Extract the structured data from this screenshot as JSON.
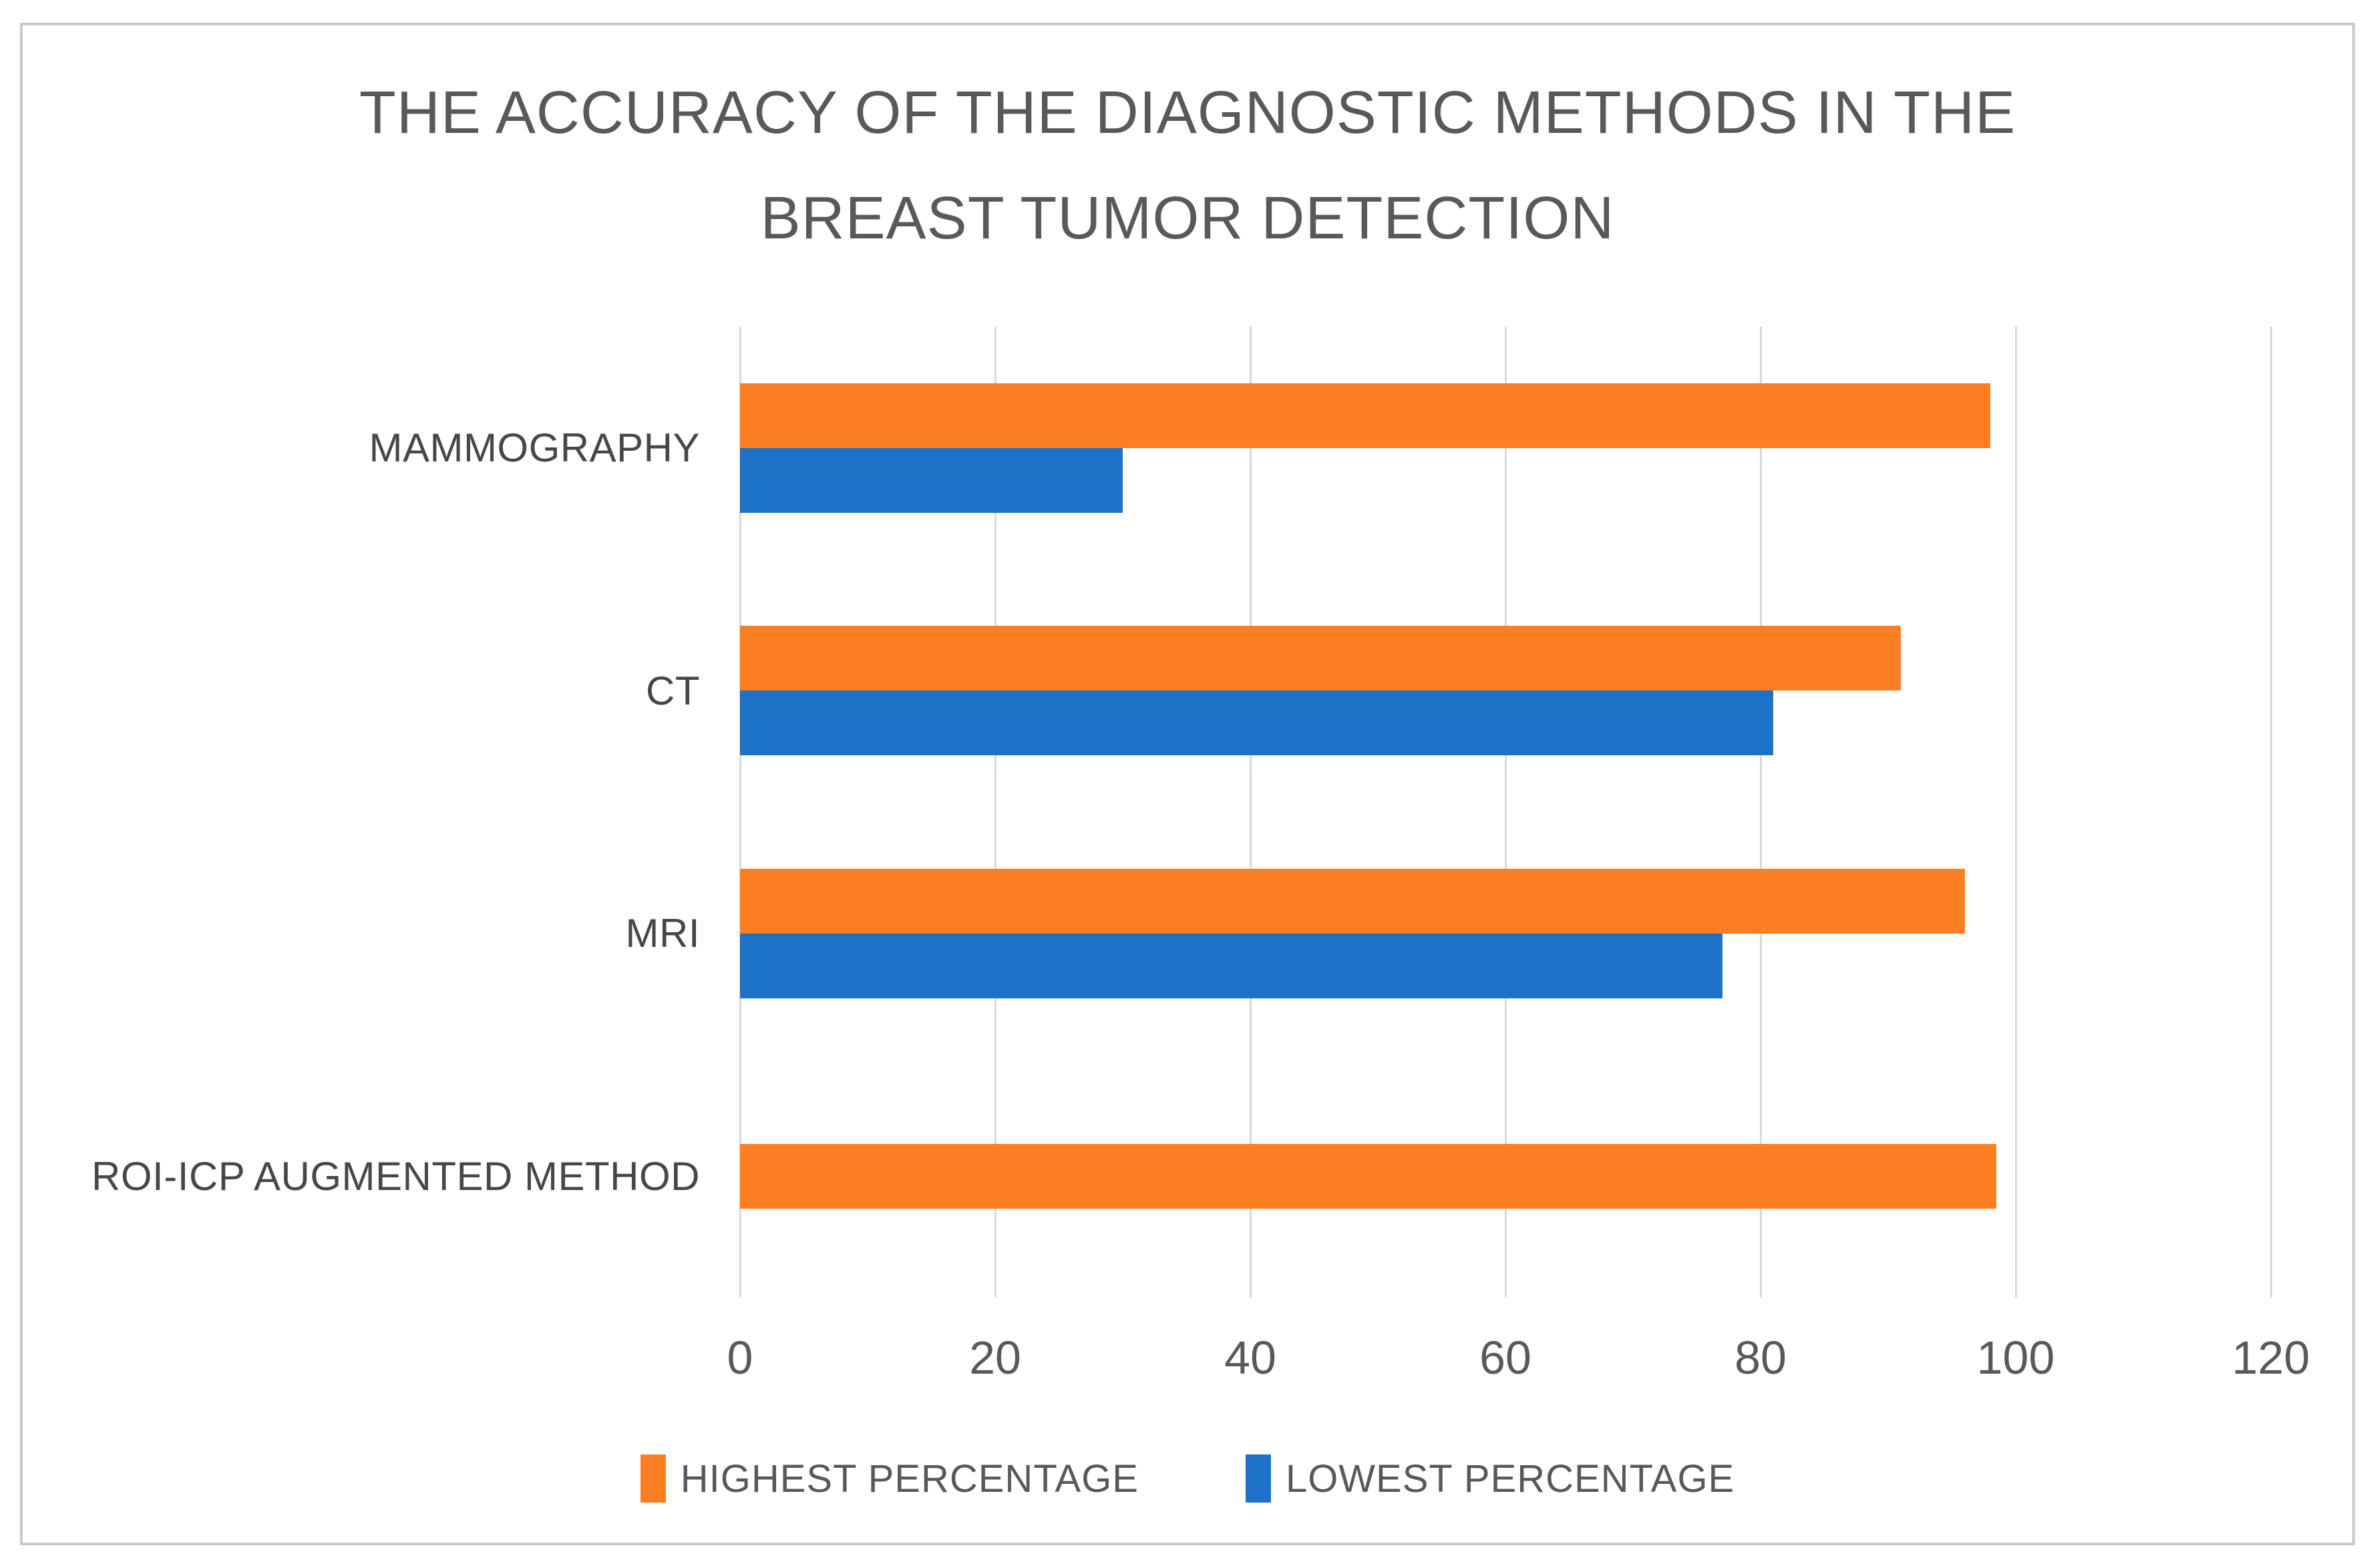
{
  "chart_data": {
    "type": "bar",
    "orientation": "horizontal",
    "title": "THE ACCURACY OF THE DIAGNOSTIC METHODS IN THE BREAST TUMOR DETECTION",
    "categories": [
      "MAMMOGRAPHY",
      "CT",
      "MRI",
      "ROI-ICP AUGMENTED METHOD"
    ],
    "series": [
      {
        "name": "HIGHEST PERCENTAGE",
        "color": "#fb7e22",
        "values": [
          98,
          91,
          96,
          98.5
        ]
      },
      {
        "name": "LOWEST PERCENTAGE",
        "color": "#1d72c7",
        "values": [
          30,
          81,
          77,
          0
        ]
      }
    ],
    "xlim": [
      0,
      120
    ],
    "xticks": [
      0,
      20,
      40,
      60,
      80,
      100,
      120
    ],
    "xlabel": "",
    "ylabel": "",
    "grid": "vertical-only",
    "gridline_color": "#d9d9d9",
    "legend_position": "bottom",
    "title_color": "#595959",
    "axis_text_color": "#595959",
    "category_text_color": "#474747",
    "frame_border_color": "#c9c9c9"
  }
}
